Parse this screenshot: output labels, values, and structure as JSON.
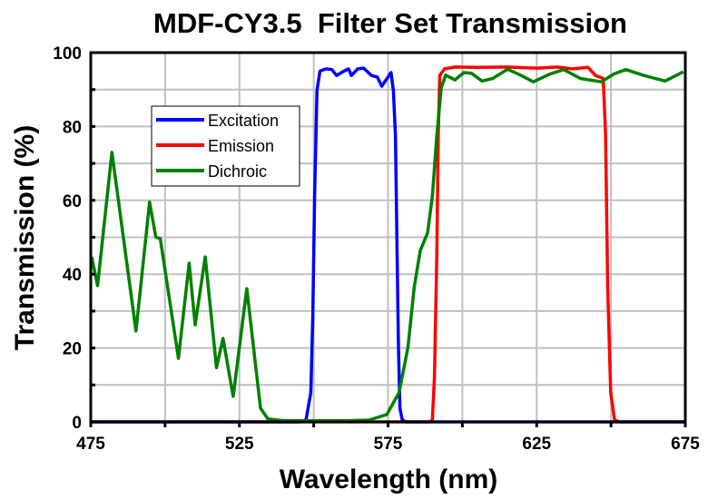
{
  "chart_data": {
    "type": "line",
    "title": "MDF-CY3.5  Filter Set Transmission",
    "xlabel": "Wavelength (nm)",
    "ylabel": "Transmission (%)",
    "xlim": [
      475,
      675
    ],
    "ylim": [
      0,
      100
    ],
    "xticks": [
      475,
      525,
      575,
      625,
      675
    ],
    "yticks": [
      0,
      20,
      40,
      60,
      80,
      100
    ],
    "grid": true,
    "legend_position": "upper-left",
    "series": [
      {
        "name": "Excitation",
        "color": "#0000ff",
        "x": [
          475,
          545,
          547.4,
          549,
          549.7,
          550.3,
          551.1,
          552.1,
          554.1,
          556.1,
          557.7,
          559.7,
          561.7,
          562.7,
          564.8,
          566.8,
          569.4,
          571.4,
          572.9,
          576,
          576.8,
          577.5,
          578,
          578.5,
          579,
          579.8,
          581,
          675
        ],
        "y": [
          0,
          0,
          0.5,
          7.9,
          28.3,
          61,
          89.7,
          95,
          95.6,
          95.4,
          93.8,
          94.8,
          95.6,
          93.8,
          95.6,
          95.8,
          93.8,
          93.4,
          90.9,
          94.6,
          89.7,
          77.4,
          48.7,
          20.1,
          3.7,
          0.5,
          0,
          0
        ]
      },
      {
        "name": "Emission",
        "color": "#ff0000",
        "x": [
          475,
          589,
          589.9,
          590.6,
          591.4,
          591.9,
          592.4,
          594,
          597.5,
          605,
          615,
          625,
          632,
          637,
          642.3,
          644.8,
          647.4,
          648.2,
          648.9,
          649.9,
          651.2,
          653,
          675
        ],
        "y": [
          0,
          0,
          0.5,
          11.9,
          44.7,
          77.4,
          93.8,
          95.6,
          96.1,
          96,
          96.1,
          95.8,
          96.1,
          95.6,
          96,
          93.8,
          93,
          77.4,
          36.4,
          7.9,
          0.5,
          0,
          0
        ]
      },
      {
        "name": "Dichroic",
        "color": "#008000",
        "x": [
          475.3,
          477.3,
          482.1,
          490.2,
          494.8,
          496.9,
          498.4,
          504.5,
          508.1,
          510.1,
          513.5,
          517.3,
          519.5,
          522.9,
          527.5,
          532.1,
          534.6,
          540,
          550,
          560,
          568.5,
          574.6,
          578.7,
          581.7,
          583.8,
          585.8,
          588.3,
          589.9,
          591.4,
          592.9,
          594.4,
          597.5,
          600.5,
          603.1,
          606.6,
          610.2,
          615.2,
          619.8,
          623.9,
          629.5,
          634.1,
          639.7,
          646.8,
          650.9,
          655,
          661.1,
          668.2,
          674.3
        ],
        "y": [
          44.7,
          36.9,
          73,
          24.6,
          59.5,
          50,
          49.6,
          17.2,
          43,
          26.3,
          44.7,
          14.7,
          22.6,
          6.9,
          36.1,
          3.7,
          0.8,
          0.3,
          0.3,
          0.3,
          0.5,
          2,
          7.9,
          20.1,
          36.4,
          46.3,
          51.2,
          61,
          77.4,
          90.5,
          93.9,
          92.6,
          94.6,
          94.4,
          92.3,
          93,
          95.5,
          93.8,
          92.1,
          94.2,
          95.4,
          93,
          92.1,
          94.2,
          95.4,
          93.8,
          92.3,
          94.8
        ]
      }
    ]
  }
}
